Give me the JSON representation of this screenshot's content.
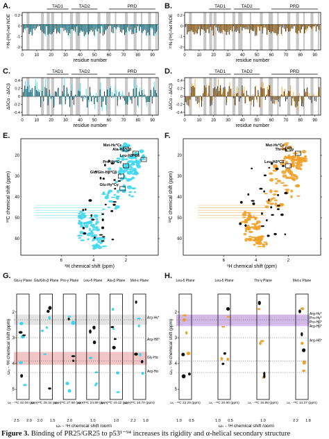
{
  "panels": {
    "A": "A.",
    "B": "B.",
    "C": "C.",
    "D": "D.",
    "E": "E.",
    "F": "F.",
    "G": "G.",
    "H": "H."
  },
  "regions": {
    "tad1": "TAD1",
    "tad2": "TAD2",
    "prd": "PRD"
  },
  "bar_axes": {
    "noe_ylabel": "¹⁵N-{¹H}-het NOE",
    "dcs_ylabel": "ΔδCα - ΔδCβ",
    "xlabel": "residue number",
    "x_ticks": [
      "0",
      "10",
      "20",
      "30",
      "40",
      "50",
      "60",
      "70",
      "80",
      "90"
    ],
    "noe_y_ticks": [
      "0.2",
      "0",
      "-1",
      "-2"
    ],
    "dcs_y_ticks": [
      "0.4",
      "0.2",
      "0",
      "-0.2",
      "-0.4"
    ]
  },
  "hsqc": {
    "xlabel": "¹H chemical shift (ppm)",
    "ylabel": "¹³C chemical shift (ppm)",
    "x_ticks": [
      "6",
      "4",
      "2"
    ],
    "y_ticks": [
      "20",
      "30",
      "40",
      "50",
      "60"
    ],
    "labels_E": [
      "Met-Hε*Cε",
      "Ala-Hβ*Cβ",
      "Pro-Hγ*Cγ",
      "Leu-Hδ*Cδ",
      "Glu/Gln-Hβ*Cβ",
      "Glu-Hγ*Cγ"
    ],
    "labels_F": [
      "Met-Hε*Cε",
      "Thr-Hγ*Cγ",
      "Leu-Hδ*Cδ"
    ]
  },
  "strips": {
    "ylabel": "ω₃ - ¹H chemical shift (ppm)",
    "xlabel": "ω₂ - ¹H chemical shift (ppm)",
    "y_ticks": [
      "2",
      "3",
      "4",
      "5"
    ],
    "G_planes": [
      {
        "name": "Glu-γ Plane",
        "shift": "ω₁ - ¹³C 32.06 (ppm)",
        "ticks": [
          "2.5",
          "2.0"
        ]
      },
      {
        "name": "Glu/Gln-β Plane",
        "shift": "ω₁ - ¹³C 29.34 (ppm)",
        "ticks": [
          "2.0",
          "1.5"
        ]
      },
      {
        "name": "Pro-γ Plane",
        "shift": "ω₁ - ¹³C 27.50 (ppm)",
        "ticks": [
          "2.0"
        ]
      },
      {
        "name": "Leu-δ Plane",
        "shift": "ω₁ - ¹³C 24.89 (ppm)",
        "ticks": [
          "1.0"
        ]
      },
      {
        "name": "Ala-β Plane",
        "shift": "ω₁ - ¹³C 19.12 (ppm)",
        "ticks": [
          "1.0"
        ]
      },
      {
        "name": "Met-ε Plane",
        "shift": "ω₁ - ¹³C 16.70 (ppm)",
        "ticks": [
          "2.2",
          "1.8"
        ]
      }
    ],
    "H_planes": [
      {
        "name": "Leu-δ Plane",
        "shift": "ω₁ - ¹³C 22.29 (ppm)",
        "ticks": [
          "1.0",
          "0.5"
        ]
      },
      {
        "name": "Leu-δ Plane",
        "shift": "ω₁ - ¹³C 20.90 (ppm)",
        "ticks": [
          "1.0",
          "0.5"
        ]
      },
      {
        "name": "Thr-γ Plane",
        "shift": "ω₁ - ¹³C 15.88 (ppm)",
        "ticks": [
          "1.0"
        ]
      },
      {
        "name": "Met-ε Plane",
        "shift": "ω₁ - ¹³C 14.27 (ppm)",
        "ticks": [
          "2.2",
          "1.8"
        ]
      }
    ],
    "G_labels": [
      "Arg-Hγ*",
      "Arg-Hδ*",
      "Gly-Hα",
      "Arg-Hα"
    ],
    "H_labels": [
      "Arg-Hγ*",
      "Pro-Hγ*",
      "Pro-Hβ*",
      "Arg-Hβ*",
      "Arg-Hδ*"
    ]
  },
  "colors": {
    "cyan": "#3fd7ee",
    "orange": "#f0a12a",
    "gray_band": "#c8c8c8",
    "red_band": "#e9a0a0",
    "purple_band": "#c79be6"
  },
  "caption": {
    "label": "Figure 3.",
    "text": " Binding of PR25/GR25 to p53¹⁻⁹⁴ increases its rigidity and α-helical secondary structure"
  }
}
